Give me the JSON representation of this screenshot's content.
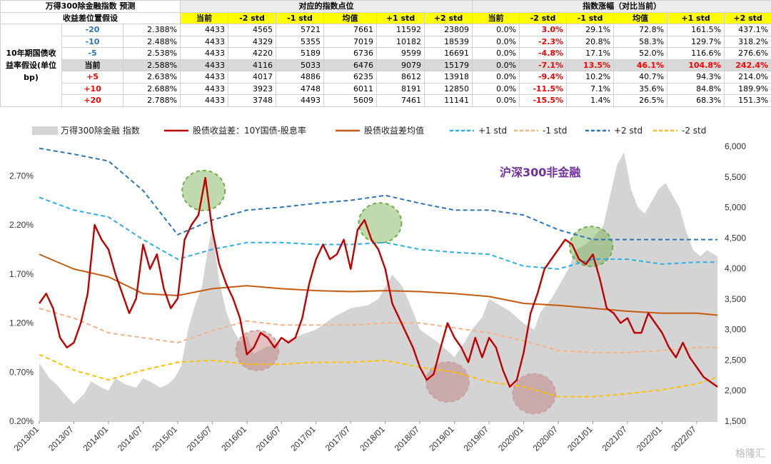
{
  "table": {
    "title": "万得300除金融指数 预测",
    "subtitle": "收益差位置假设",
    "row_header": "10年期国债收益率假设(单位bp)",
    "group_points": "对应的指数点位",
    "group_change": "指数涨幅（对比当前）",
    "col_headers_points": [
      "当前",
      "-2 std",
      "-1 std",
      "均值",
      "+1 std",
      "+2 std"
    ],
    "col_headers_change": [
      "当前",
      "-2 std",
      "-1 std",
      "均值",
      "+1 std",
      "+2 std"
    ],
    "rows": [
      {
        "shift": "-20",
        "rate": "2.388%",
        "points": [
          "4433",
          "4565",
          "5721",
          "7661",
          "11592",
          "23809"
        ],
        "change": [
          "0.0%",
          "3.0%",
          "29.1%",
          "72.8%",
          "161.5%",
          "437.1%"
        ],
        "kind": "neg",
        "current": false
      },
      {
        "shift": "-10",
        "rate": "2.488%",
        "points": [
          "4433",
          "4329",
          "5355",
          "7019",
          "10182",
          "18539"
        ],
        "change": [
          "0.0%",
          "-2.3%",
          "20.8%",
          "58.3%",
          "129.7%",
          "318.2%"
        ],
        "kind": "neg",
        "current": false
      },
      {
        "shift": "-5",
        "rate": "2.538%",
        "points": [
          "4433",
          "4220",
          "5189",
          "6736",
          "9599",
          "16691"
        ],
        "change": [
          "0.0%",
          "-4.8%",
          "17.1%",
          "52.0%",
          "116.6%",
          "276.6%"
        ],
        "kind": "neg",
        "current": false
      },
      {
        "shift": "当前",
        "rate": "2.588%",
        "points": [
          "4433",
          "4116",
          "5033",
          "6476",
          "9079",
          "15179"
        ],
        "change": [
          "0.0%",
          "-7.1%",
          "13.5%",
          "46.1%",
          "104.8%",
          "242.4%"
        ],
        "kind": "cur",
        "current": true
      },
      {
        "shift": "+5",
        "rate": "2.638%",
        "points": [
          "4433",
          "4017",
          "4886",
          "6235",
          "8612",
          "13918"
        ],
        "change": [
          "0.0%",
          "-9.4%",
          "10.2%",
          "40.7%",
          "94.3%",
          "214.0%"
        ],
        "kind": "pos",
        "current": false
      },
      {
        "shift": "+10",
        "rate": "2.688%",
        "points": [
          "4433",
          "3923",
          "4748",
          "6011",
          "8191",
          "12850"
        ],
        "change": [
          "0.0%",
          "-11.5%",
          "7.1%",
          "35.6%",
          "84.8%",
          "189.9%"
        ],
        "kind": "pos",
        "current": false
      },
      {
        "shift": "+20",
        "rate": "2.788%",
        "points": [
          "4433",
          "3748",
          "4493",
          "5609",
          "7461",
          "11141"
        ],
        "change": [
          "0.0%",
          "-15.5%",
          "1.4%",
          "26.5%",
          "68.3%",
          "151.3%"
        ],
        "kind": "pos",
        "current": false
      }
    ]
  },
  "chart_data": {
    "type": "line",
    "title": "沪深300非金融",
    "legend_position": "top",
    "legend": [
      "万得300除金融 指数",
      "股债收益差：10Y国债-股息率",
      "股债收益差均值",
      "+1 std",
      "-1 std",
      "+2 std",
      "-2 std"
    ],
    "x_tick_labels": [
      "2013/01",
      "2013/07",
      "2014/01",
      "2014/07",
      "2015/01",
      "2015/07",
      "2016/01",
      "2016/07",
      "2017/01",
      "2017/07",
      "2018/01",
      "2018/07",
      "2019/01",
      "2019/07",
      "2020/01",
      "2020/07",
      "2021/01",
      "2021/07",
      "2022/01",
      "2022/07"
    ],
    "y_left_ticks": [
      "0.20%",
      "0.70%",
      "1.20%",
      "1.70%",
      "2.20%",
      "2.70%"
    ],
    "y_left_range": [
      0.2,
      3.0
    ],
    "y_right_ticks": [
      "1,500",
      "2,000",
      "2,500",
      "3,000",
      "3,500",
      "4,000",
      "4,500",
      "5,000",
      "5,500",
      "6,000"
    ],
    "y_right_range": [
      1500,
      6000
    ],
    "colors": {
      "index": "#d4d4d4",
      "spread": "#c00000",
      "mean": "#c55a11",
      "plus1": "#2eaee8",
      "minus1": "#f4b183",
      "plus2": "#2e75b6",
      "minus2": "#ffc000",
      "title": "#7030a0"
    },
    "series": [
      {
        "name": "万得300除金融 指数",
        "axis": "right",
        "style": "area",
        "x": [
          0,
          0.3,
          0.5,
          0.8,
          1.0,
          1.3,
          1.5,
          1.8,
          2.0,
          2.2,
          2.5,
          2.8,
          3.0,
          3.2,
          3.5,
          3.7,
          3.9,
          4.1,
          4.3,
          4.5,
          4.7,
          4.9,
          5.0,
          5.2,
          5.4,
          5.6,
          5.8,
          6.0,
          6.2,
          6.5,
          7.0,
          7.5,
          8.0,
          8.5,
          9.0,
          9.5,
          9.8,
          10.0,
          10.2,
          10.5,
          10.8,
          11.0,
          11.5,
          12.0,
          12.3,
          12.5,
          12.8,
          13.0,
          13.3,
          13.6,
          14.0,
          14.3,
          14.5,
          14.8,
          15.0,
          15.3,
          15.5,
          15.8,
          16.0,
          16.3,
          16.5,
          16.7,
          16.9,
          17.1,
          17.3,
          17.5,
          17.7,
          17.9,
          18.1,
          18.3,
          18.5,
          18.7,
          18.9,
          19.1,
          19.3,
          19.6
        ],
        "y": [
          2450,
          2200,
          2100,
          1900,
          1780,
          1950,
          2150,
          2050,
          2000,
          2200,
          2100,
          2050,
          2200,
          2150,
          2050,
          2100,
          2200,
          2400,
          3000,
          3400,
          3700,
          4400,
          4650,
          3800,
          3300,
          3000,
          2800,
          2900,
          2600,
          2700,
          2800,
          2900,
          3000,
          3200,
          3350,
          3400,
          3500,
          3700,
          3900,
          3700,
          3300,
          3000,
          2800,
          2550,
          2800,
          3000,
          3200,
          3500,
          3400,
          3300,
          3100,
          3000,
          3300,
          3500,
          3700,
          4000,
          4300,
          4400,
          4500,
          4700,
          5200,
          5700,
          5900,
          5300,
          5000,
          4900,
          5100,
          5300,
          5400,
          5200,
          5000,
          4600,
          4300,
          4200,
          4300,
          4200
        ]
      },
      {
        "name": "股债收益差：10Y国债-股息率",
        "axis": "left",
        "style": "line",
        "x": [
          0,
          0.2,
          0.4,
          0.6,
          0.8,
          1.0,
          1.2,
          1.4,
          1.6,
          1.8,
          2.0,
          2.2,
          2.4,
          2.6,
          2.8,
          3.0,
          3.2,
          3.4,
          3.6,
          3.8,
          4.0,
          4.2,
          4.4,
          4.6,
          4.8,
          5.0,
          5.2,
          5.4,
          5.6,
          5.8,
          6.0,
          6.2,
          6.4,
          6.6,
          6.8,
          7.0,
          7.2,
          7.4,
          7.6,
          7.8,
          8.0,
          8.2,
          8.4,
          8.6,
          8.8,
          9.0,
          9.2,
          9.4,
          9.6,
          9.8,
          10.0,
          10.2,
          10.4,
          10.6,
          10.8,
          11.0,
          11.2,
          11.4,
          11.6,
          11.8,
          12.0,
          12.2,
          12.4,
          12.6,
          12.8,
          13.0,
          13.2,
          13.4,
          13.6,
          13.8,
          14.0,
          14.2,
          14.4,
          14.6,
          14.8,
          15.0,
          15.2,
          15.4,
          15.6,
          15.8,
          16.0,
          16.2,
          16.4,
          16.6,
          16.8,
          17.0,
          17.2,
          17.4,
          17.6,
          17.8,
          18.0,
          18.2,
          18.4,
          18.6,
          18.8,
          19.0,
          19.2,
          19.4,
          19.6
        ],
        "y": [
          1.4,
          1.5,
          1.35,
          1.05,
          0.95,
          1.0,
          1.2,
          1.5,
          2.2,
          2.05,
          1.95,
          1.7,
          1.5,
          1.3,
          1.45,
          2.0,
          1.75,
          1.9,
          1.55,
          1.35,
          1.45,
          2.05,
          2.2,
          2.3,
          2.68,
          2.15,
          1.8,
          1.6,
          1.45,
          1.25,
          0.88,
          0.95,
          1.1,
          1.05,
          0.95,
          1.05,
          1.0,
          1.05,
          1.25,
          1.6,
          1.85,
          2.0,
          1.85,
          1.9,
          2.05,
          1.75,
          2.15,
          2.25,
          2.05,
          1.95,
          1.75,
          1.4,
          1.25,
          1.1,
          0.95,
          0.75,
          0.62,
          0.68,
          0.95,
          1.2,
          1.05,
          0.95,
          0.8,
          1.05,
          0.85,
          1.05,
          0.95,
          0.72,
          0.55,
          0.62,
          0.9,
          1.3,
          1.5,
          1.75,
          1.85,
          1.95,
          2.05,
          2.0,
          1.85,
          1.8,
          1.9,
          1.65,
          1.35,
          1.3,
          1.2,
          1.25,
          1.1,
          1.1,
          1.3,
          1.2,
          1.1,
          0.95,
          0.85,
          1.0,
          0.85,
          0.75,
          0.65,
          0.6,
          0.55
        ]
      },
      {
        "name": "股债收益差均值",
        "axis": "left",
        "style": "line",
        "x": [
          0,
          1,
          2,
          3,
          4,
          5,
          6,
          7,
          8,
          9,
          10,
          11,
          12,
          13,
          14,
          15,
          16,
          17,
          18,
          19,
          19.6
        ],
        "y": [
          1.9,
          1.75,
          1.67,
          1.5,
          1.48,
          1.55,
          1.58,
          1.55,
          1.53,
          1.52,
          1.53,
          1.52,
          1.5,
          1.47,
          1.4,
          1.38,
          1.35,
          1.32,
          1.3,
          1.3,
          1.28
        ]
      },
      {
        "name": "+1 std",
        "axis": "left",
        "style": "dashed",
        "x": [
          0,
          1,
          2,
          3,
          4,
          5,
          6,
          7,
          8,
          9,
          10,
          11,
          12,
          13,
          14,
          15,
          16,
          17,
          18,
          19,
          19.6
        ],
        "y": [
          2.48,
          2.35,
          2.28,
          2.05,
          1.85,
          1.95,
          2.02,
          2.02,
          2.0,
          2.0,
          2.02,
          1.95,
          1.92,
          1.9,
          1.78,
          1.75,
          1.85,
          1.85,
          1.8,
          1.82,
          1.82
        ]
      },
      {
        "name": "-1 std",
        "axis": "left",
        "style": "dashed",
        "x": [
          0,
          1,
          2,
          3,
          4,
          5,
          6,
          7,
          8,
          9,
          10,
          11,
          12,
          13,
          14,
          15,
          16,
          17,
          18,
          19,
          19.6
        ],
        "y": [
          1.35,
          1.25,
          1.1,
          1.05,
          1.0,
          1.12,
          1.22,
          1.18,
          1.18,
          1.18,
          1.2,
          1.2,
          1.15,
          1.1,
          1.02,
          0.92,
          0.9,
          0.9,
          0.92,
          0.95,
          0.95
        ]
      },
      {
        "name": "+2 std",
        "axis": "left",
        "style": "dashed",
        "x": [
          0,
          1,
          2,
          3,
          4,
          5,
          6,
          7,
          8,
          9,
          10,
          11,
          12,
          13,
          14,
          15,
          16,
          17,
          18,
          19,
          19.6
        ],
        "y": [
          2.98,
          2.92,
          2.85,
          2.55,
          2.1,
          2.25,
          2.35,
          2.38,
          2.42,
          2.45,
          2.5,
          2.42,
          2.35,
          2.35,
          2.3,
          2.15,
          2.05,
          2.05,
          2.05,
          2.05,
          2.05
        ]
      },
      {
        "name": "-2 std",
        "axis": "left",
        "style": "dashed",
        "x": [
          0,
          1,
          2,
          3,
          4,
          5,
          6,
          7,
          8,
          9,
          10,
          11,
          12,
          13,
          14,
          15,
          16,
          17,
          18,
          19,
          19.6
        ],
        "y": [
          0.88,
          0.72,
          0.62,
          0.72,
          0.8,
          0.82,
          0.78,
          0.78,
          0.8,
          0.8,
          0.82,
          0.75,
          0.7,
          0.6,
          0.55,
          0.45,
          0.45,
          0.48,
          0.52,
          0.58,
          0.65
        ]
      }
    ],
    "annotations": [
      {
        "kind": "high",
        "x": 4.75,
        "y": 2.55
      },
      {
        "kind": "high",
        "x": 9.85,
        "y": 2.22
      },
      {
        "kind": "high",
        "x": 15.95,
        "y": 1.98
      },
      {
        "kind": "low",
        "x": 6.3,
        "y": 0.92
      },
      {
        "kind": "low",
        "x": 11.8,
        "y": 0.6
      },
      {
        "kind": "low",
        "x": 14.3,
        "y": 0.48
      }
    ],
    "watermark": "格隆汇"
  }
}
